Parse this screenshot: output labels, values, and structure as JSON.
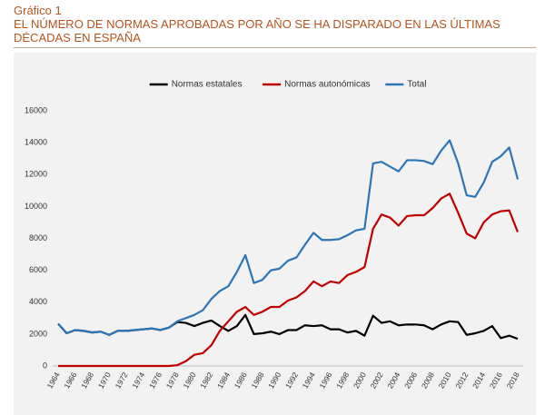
{
  "header": {
    "label": "Gráfico 1",
    "title": "EL NÚMERO DE NORMAS APROBADAS POR AÑO SE HA DISPARADO EN LAS ÚLTIMAS DÉCADAS EN ESPAÑA"
  },
  "chart_data": {
    "type": "line",
    "categories": [
      "1964",
      null,
      "1966",
      null,
      "1968",
      null,
      "1970",
      null,
      "1972",
      null,
      "1974",
      null,
      "1976",
      null,
      "1978",
      null,
      "1980",
      null,
      "1982",
      null,
      "1984",
      null,
      "1986",
      null,
      "1988",
      null,
      "1990",
      null,
      "1992",
      null,
      "1994",
      null,
      "1996",
      null,
      "1998",
      null,
      "2000",
      null,
      "2002",
      null,
      "2004",
      null,
      "2006",
      null,
      "2008",
      null,
      "2010",
      null,
      "2012",
      null,
      "2014",
      null,
      "2016",
      null,
      "2018"
    ],
    "series": [
      {
        "name": "Normas estatales",
        "color": "#000000",
        "values": [
          2650,
          2050,
          2250,
          2200,
          2100,
          2150,
          1950,
          2200,
          2200,
          2250,
          2300,
          2350,
          2250,
          2400,
          2750,
          2700,
          2500,
          2700,
          2850,
          2500,
          2200,
          2500,
          3200,
          2000,
          2050,
          2150,
          2000,
          2250,
          2250,
          2550,
          2500,
          2550,
          2300,
          2300,
          2100,
          2200,
          1900,
          3150,
          2700,
          2800,
          2550,
          2600,
          2600,
          2550,
          2300,
          2600,
          2800,
          2750,
          1950,
          2050,
          2200,
          2500,
          1750,
          1900,
          1700
        ]
      },
      {
        "name": "Normas autonómicas",
        "color": "#c00000",
        "values": [
          0,
          0,
          0,
          0,
          0,
          0,
          0,
          0,
          0,
          0,
          0,
          0,
          0,
          0,
          50,
          300,
          700,
          800,
          1300,
          2200,
          2800,
          3400,
          3700,
          3200,
          3400,
          3700,
          3700,
          4100,
          4300,
          4700,
          5300,
          5000,
          5300,
          5200,
          5700,
          5900,
          6200,
          8600,
          9500,
          9300,
          8800,
          9400,
          9450,
          9450,
          9900,
          10500,
          10800,
          9600,
          8300,
          8000,
          9000,
          9500,
          9700,
          9750,
          8400
        ]
      },
      {
        "name": "Total",
        "color": "#2e75b6",
        "values": [
          2650,
          2050,
          2250,
          2200,
          2100,
          2150,
          1950,
          2200,
          2200,
          2250,
          2300,
          2350,
          2250,
          2400,
          2800,
          3000,
          3200,
          3500,
          4200,
          4700,
          5000,
          5900,
          6950,
          5200,
          5400,
          6000,
          6100,
          6600,
          6800,
          7600,
          8350,
          7900,
          7900,
          7950,
          8200,
          8500,
          8600,
          12700,
          12800,
          12500,
          12200,
          12900,
          12900,
          12850,
          12650,
          13500,
          14150,
          12700,
          10700,
          10600,
          11500,
          12800,
          13150,
          13700,
          11700
        ]
      }
    ],
    "ylim": [
      0,
      16000
    ],
    "yticks": [
      0,
      2000,
      4000,
      6000,
      8000,
      10000,
      12000,
      14000,
      16000
    ],
    "grid": false,
    "legend": "top"
  }
}
